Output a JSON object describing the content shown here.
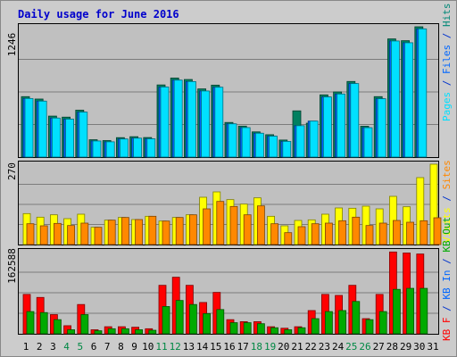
{
  "chart_data": {
    "type": "bar",
    "title": "Daily usage for June 2016",
    "categories": [
      "1",
      "2",
      "3",
      "4",
      "5",
      "6",
      "7",
      "8",
      "9",
      "10",
      "11",
      "12",
      "13",
      "14",
      "15",
      "16",
      "17",
      "18",
      "19",
      "20",
      "21",
      "22",
      "23",
      "24",
      "25",
      "26",
      "27",
      "28",
      "29",
      "30",
      "31"
    ],
    "weekend_days": [
      "4",
      "5",
      "11",
      "12",
      "18",
      "19",
      "25",
      "26"
    ],
    "panels": [
      {
        "id": "top",
        "max_label": "1246",
        "ymax": 1246,
        "legend": [
          {
            "text": "Pages",
            "color": "#00e0ff"
          },
          {
            "text": " / ",
            "color": "#0033cc"
          },
          {
            "text": "Files",
            "color": "#0066ff"
          },
          {
            "text": " / ",
            "color": "#0033cc"
          },
          {
            "text": "Hits",
            "color": "#008877"
          }
        ],
        "series": [
          {
            "name": "Hits",
            "color": "#008060",
            "values": [
              578,
              555,
              392,
              382,
              449,
              166,
              158,
              186,
              195,
              187,
              690,
              756,
              742,
              652,
              688,
              331,
              296,
              241,
              214,
              163,
              442,
              324,
              595,
              623,
              723,
              295,
              578,
              1130,
              1113,
              1246,
              0
            ]
          },
          {
            "name": "Files",
            "color": "#0066ff",
            "values": [
              560,
              535,
              373,
              363,
              430,
              154,
              146,
              173,
              181,
              175,
              670,
              736,
              722,
              632,
              668,
              318,
              282,
              228,
              200,
              150,
              300,
              344,
              575,
              603,
              703,
              281,
              558,
              1110,
              1093,
              1226,
              0
            ]
          },
          {
            "name": "Pages",
            "color": "#00e0ff",
            "values": [
              560,
              535,
              373,
              363,
              430,
              154,
              146,
              173,
              181,
              175,
              670,
              736,
              722,
              632,
              668,
              318,
              282,
              228,
              200,
              150,
              300,
              344,
              575,
              603,
              703,
              281,
              558,
              1110,
              1093,
              1226,
              0
            ]
          }
        ]
      },
      {
        "id": "mid",
        "max_label": "270",
        "ymax": 270,
        "legend": [
          {
            "text": "Visits",
            "color": "#ffff00"
          },
          {
            "text": " / ",
            "color": "#0033cc"
          },
          {
            "text": "Sites",
            "color": "#ff8800"
          }
        ],
        "series": [
          {
            "name": "Visits",
            "color": "#ffff00",
            "values": [
              104,
              92,
              100,
              87,
              102,
              58,
              82,
              91,
              84,
              95,
              79,
              91,
              100,
              159,
              177,
              151,
              136,
              157,
              95,
              63,
              81,
              83,
              102,
              123,
              122,
              129,
              120,
              162,
              127,
              225,
              270
            ]
          },
          {
            "name": "Sites",
            "color": "#ff8800",
            "values": [
              70,
              63,
              71,
              64,
              72,
              58,
              82,
              91,
              84,
              95,
              79,
              91,
              100,
              120,
              145,
              128,
              100,
              130,
              70,
              40,
              60,
              70,
              72,
              80,
              92,
              64,
              72,
              81,
              75,
              80,
              90
            ]
          }
        ]
      },
      {
        "id": "bot",
        "max_label": "162588",
        "ymax": 162588,
        "legend": [
          {
            "text": "KB F",
            "color": "#ff0000"
          },
          {
            "text": " / ",
            "color": "#0033cc"
          },
          {
            "text": "KB In",
            "color": "#0066ff"
          },
          {
            "text": " / ",
            "color": "#0033cc"
          },
          {
            "text": "KB Out",
            "color": "#00aa00"
          }
        ],
        "series": [
          {
            "name": "KB F",
            "color": "#ff0000",
            "values": [
              78000,
              72000,
              38000,
              16000,
              58000,
              8000,
              14000,
              14000,
              13000,
              10000,
              96000,
              112000,
              96000,
              62000,
              82000,
              28000,
              24000,
              24000,
              14000,
              11000,
              14000,
              46000,
              78000,
              76000,
              96000,
              30000,
              78000,
              162000,
              160000,
              158000,
              0
            ]
          },
          {
            "name": "KB Out",
            "color": "#00aa00",
            "values": [
              44000,
              42000,
              28000,
              8000,
              38000,
              6000,
              10000,
              10000,
              8000,
              7000,
              54000,
              66000,
              58000,
              40000,
              48000,
              22000,
              22000,
              20000,
              12000,
              8000,
              12000,
              30000,
              44000,
              46000,
              64000,
              28000,
              44000,
              88000,
              90000,
              90000,
              0
            ]
          }
        ]
      }
    ]
  }
}
